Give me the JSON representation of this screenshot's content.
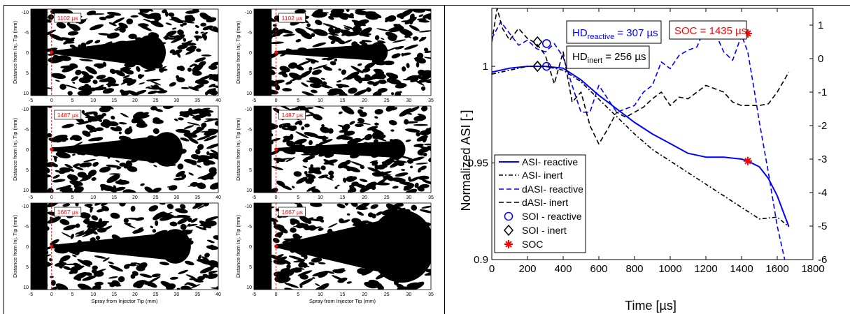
{
  "colors": {
    "reactive": "#0000ff",
    "inert": "#000000",
    "soc": "#ff0000",
    "label": "#ff0000"
  },
  "images": {
    "xlabel": "Spray from Injector Tip (mm)",
    "ylabel": "Distance from Inj. Tip (mm)",
    "col1_xticks": [
      "-5",
      "0",
      "5",
      "10",
      "15",
      "20",
      "25",
      "30",
      "35",
      "40"
    ],
    "col2_xticks": [
      "-5",
      "0",
      "5",
      "10",
      "15",
      "20",
      "25",
      "30",
      "35"
    ],
    "yticks": [
      "-10",
      "-5",
      "0",
      "5",
      "10"
    ],
    "panels": [
      {
        "label": "1102 µs",
        "plume_end_mm": 27,
        "plume_type": "reactive"
      },
      {
        "label": "1102 µs",
        "plume_end_mm": 25,
        "plume_type": "thin"
      },
      {
        "label": "1487 µs",
        "plume_end_mm": 31,
        "plume_type": "reactive"
      },
      {
        "label": "1487 µs",
        "plume_end_mm": 29,
        "plume_type": "thin"
      },
      {
        "label": "1667 µs",
        "plume_end_mm": 33,
        "plume_type": "reactive"
      },
      {
        "label": "1667 µs",
        "plume_end_mm": 35,
        "plume_type": "burst"
      }
    ]
  },
  "chart_data": {
    "type": "line",
    "xlabel": "Time [µs]",
    "ylabel": "Normalized ASI [-]",
    "xlim": [
      0,
      1800
    ],
    "ylim": [
      0.9,
      1.03
    ],
    "xticks": [
      "0",
      "200",
      "400",
      "600",
      "800",
      "1000",
      "1200",
      "1400",
      "1600",
      "1800"
    ],
    "yticks": [
      "0.9",
      "0.95",
      "1"
    ],
    "right_yticks": [
      "1",
      "0",
      "-1",
      "-2",
      "-3",
      "-4",
      "-5",
      "-6"
    ],
    "series": [
      {
        "name": "ASI- reactive",
        "style": "solid",
        "color": "#0000ff",
        "axis": "left",
        "x": [
          0,
          100,
          200,
          300,
          400,
          500,
          600,
          700,
          800,
          900,
          1000,
          1100,
          1200,
          1300,
          1400,
          1435,
          1500,
          1550,
          1600,
          1665
        ],
        "y": [
          0.997,
          0.999,
          1.0,
          1.0,
          0.999,
          0.993,
          0.985,
          0.978,
          0.971,
          0.965,
          0.96,
          0.955,
          0.953,
          0.953,
          0.952,
          0.951,
          0.948,
          0.942,
          0.933,
          0.917
        ]
      },
      {
        "name": "ASI- inert",
        "style": "dashdot",
        "color": "#000000",
        "axis": "left",
        "x": [
          0,
          100,
          200,
          300,
          400,
          500,
          600,
          700,
          800,
          900,
          1000,
          1100,
          1200,
          1300,
          1400,
          1500,
          1600,
          1665
        ],
        "y": [
          0.996,
          0.998,
          1.0,
          1.0,
          0.998,
          0.992,
          0.983,
          0.974,
          0.965,
          0.957,
          0.951,
          0.945,
          0.939,
          0.933,
          0.927,
          0.921,
          0.922,
          0.917
        ]
      },
      {
        "name": "dASI- reactive",
        "style": "dashed",
        "color": "#0000ff",
        "axis": "right",
        "x": [
          0,
          50,
          100,
          150,
          200,
          250,
          300,
          350,
          400,
          450,
          500,
          550,
          600,
          650,
          700,
          750,
          800,
          850,
          900,
          950,
          1000,
          1050,
          1100,
          1150,
          1200,
          1250,
          1300,
          1350,
          1400,
          1435,
          1470,
          1500,
          1550,
          1600,
          1650
        ],
        "y": [
          0.6,
          1.1,
          0.75,
          0.4,
          0.55,
          0.3,
          0.2,
          0.45,
          0.05,
          -0.8,
          -1.6,
          -1.6,
          -0.8,
          -1.2,
          -1.6,
          -1.5,
          -1.4,
          -1.0,
          -0.8,
          -0.1,
          -0.3,
          0.1,
          0.25,
          0.35,
          1.0,
          0.8,
          0.2,
          -0.05,
          0.7,
          0.2,
          -0.9,
          -1.9,
          -3.4,
          -5.0,
          -6.2
        ]
      },
      {
        "name": "dASI- inert",
        "style": "dashed",
        "color": "#000000",
        "axis": "right",
        "x": [
          0,
          30,
          60,
          100,
          150,
          200,
          250,
          300,
          350,
          400,
          450,
          500,
          550,
          600,
          650,
          700,
          750,
          800,
          850,
          900,
          950,
          1000,
          1050,
          1100,
          1150,
          1200,
          1250,
          1300,
          1350,
          1400,
          1450,
          1500,
          1550,
          1600,
          1665
        ],
        "y": [
          0.5,
          1.5,
          0.9,
          0.55,
          0.9,
          0.6,
          0.45,
          0.1,
          -0.75,
          0.2,
          -1.3,
          -1.0,
          -2.0,
          -2.55,
          -2.1,
          -1.6,
          -1.75,
          -1.6,
          -1.45,
          -1.2,
          -1.0,
          -1.4,
          -1.15,
          -1.2,
          -1.0,
          -0.8,
          -0.9,
          -1.0,
          -1.3,
          -1.4,
          -1.4,
          -1.4,
          -1.35,
          -1.0,
          -0.4
        ]
      }
    ],
    "markers": [
      {
        "name": "SOI - reactive",
        "shape": "circle",
        "color": "#0000ff",
        "points": [
          [
            307,
            1.0
          ],
          [
            307,
            0.45
          ]
        ]
      },
      {
        "name": "SOI - inert",
        "shape": "diamond",
        "color": "#000000",
        "points": [
          [
            256,
            1.0
          ],
          [
            256,
            0.5
          ]
        ]
      },
      {
        "name": "SOC",
        "shape": "asterisk",
        "color": "#ff0000",
        "points": [
          [
            1435,
            0.951
          ],
          [
            1435,
            0.75
          ]
        ]
      }
    ],
    "annotations": [
      {
        "name": "HD_reactive",
        "main": "HD",
        "sub": "reactive",
        "text": " = 307 µs",
        "color": "#0000ff"
      },
      {
        "name": "HD_inert",
        "main": "HD",
        "sub": "inert",
        "text": " = 256 µs",
        "color": "#000000"
      },
      {
        "name": "SOC",
        "text": "SOC = 1435 µs",
        "color": "#ff0000"
      }
    ],
    "legend_position": "bottom-left",
    "legend": [
      "ASI- reactive",
      "ASI- inert",
      "dASI- reactive",
      "dASI- inert",
      "SOI - reactive",
      "SOI - inert",
      "SOC"
    ],
    "right_axis_range": [
      -6,
      1.5
    ]
  }
}
